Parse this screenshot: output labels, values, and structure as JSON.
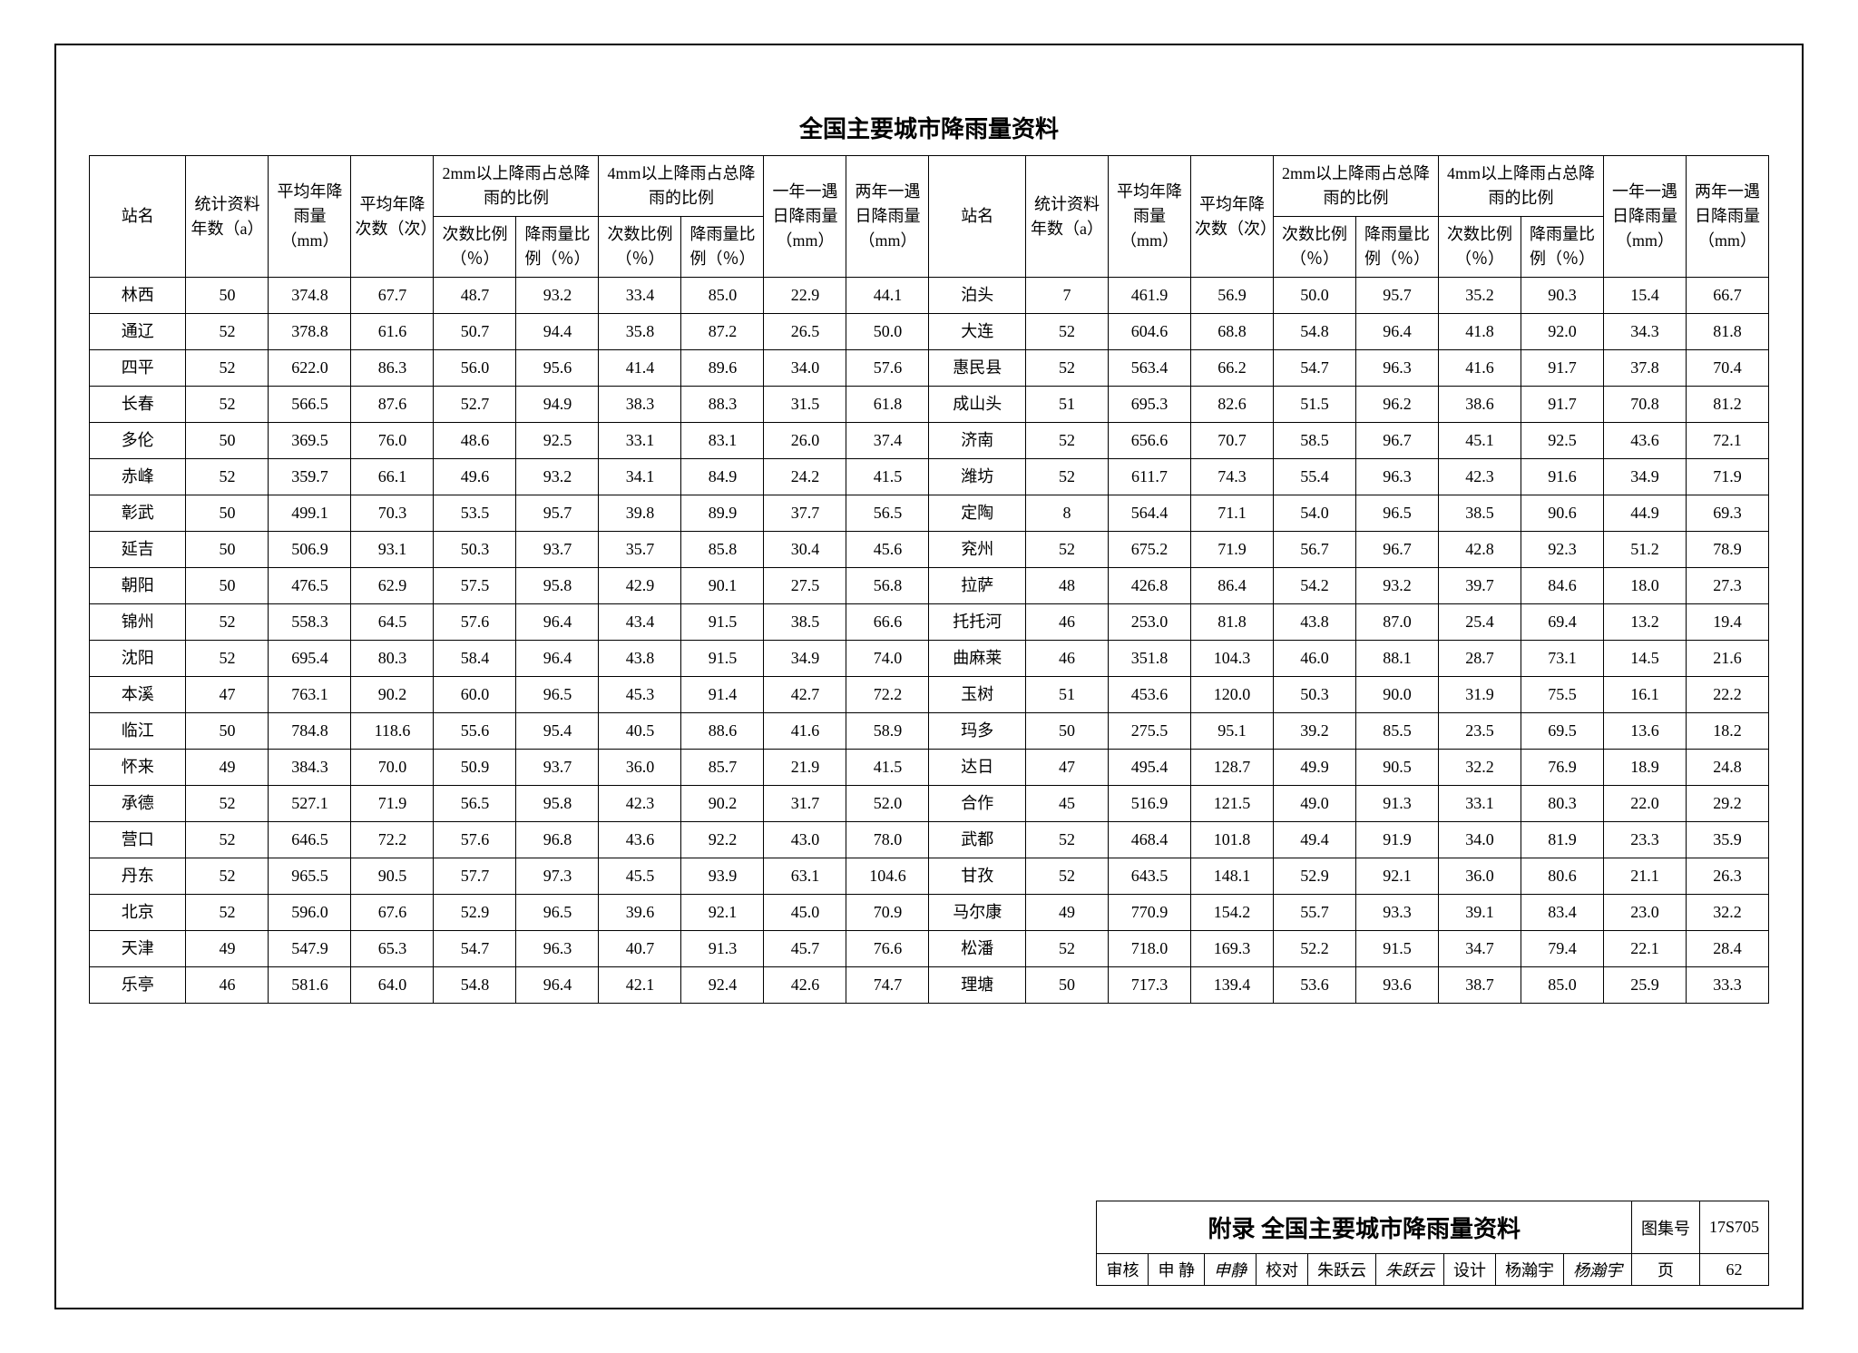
{
  "title": "全国主要城市降雨量资料",
  "columns": {
    "station": "站名",
    "years": "统计资料年数（a）",
    "avg_rain": "平均年降雨量（mm）",
    "avg_times": "平均年降次数（次）",
    "group2mm": "2mm以上降雨占总降雨的比例",
    "group4mm": "4mm以上降雨占总降雨的比例",
    "sub_times_pct": "次数比例（％）",
    "sub_rain_pct": "降雨量比例（％）",
    "one_year": "一年一遇日降雨量（mm）",
    "two_year": "两年一遇日降雨量（mm）"
  },
  "rows_left": [
    [
      "林西",
      "50",
      "374.8",
      "67.7",
      "48.7",
      "93.2",
      "33.4",
      "85.0",
      "22.9",
      "44.1"
    ],
    [
      "通辽",
      "52",
      "378.8",
      "61.6",
      "50.7",
      "94.4",
      "35.8",
      "87.2",
      "26.5",
      "50.0"
    ],
    [
      "四平",
      "52",
      "622.0",
      "86.3",
      "56.0",
      "95.6",
      "41.4",
      "89.6",
      "34.0",
      "57.6"
    ],
    [
      "长春",
      "52",
      "566.5",
      "87.6",
      "52.7",
      "94.9",
      "38.3",
      "88.3",
      "31.5",
      "61.8"
    ],
    [
      "多伦",
      "50",
      "369.5",
      "76.0",
      "48.6",
      "92.5",
      "33.1",
      "83.1",
      "26.0",
      "37.4"
    ],
    [
      "赤峰",
      "52",
      "359.7",
      "66.1",
      "49.6",
      "93.2",
      "34.1",
      "84.9",
      "24.2",
      "41.5"
    ],
    [
      "彰武",
      "50",
      "499.1",
      "70.3",
      "53.5",
      "95.7",
      "39.8",
      "89.9",
      "37.7",
      "56.5"
    ],
    [
      "延吉",
      "50",
      "506.9",
      "93.1",
      "50.3",
      "93.7",
      "35.7",
      "85.8",
      "30.4",
      "45.6"
    ],
    [
      "朝阳",
      "50",
      "476.5",
      "62.9",
      "57.5",
      "95.8",
      "42.9",
      "90.1",
      "27.5",
      "56.8"
    ],
    [
      "锦州",
      "52",
      "558.3",
      "64.5",
      "57.6",
      "96.4",
      "43.4",
      "91.5",
      "38.5",
      "66.6"
    ],
    [
      "沈阳",
      "52",
      "695.4",
      "80.3",
      "58.4",
      "96.4",
      "43.8",
      "91.5",
      "34.9",
      "74.0"
    ],
    [
      "本溪",
      "47",
      "763.1",
      "90.2",
      "60.0",
      "96.5",
      "45.3",
      "91.4",
      "42.7",
      "72.2"
    ],
    [
      "临江",
      "50",
      "784.8",
      "118.6",
      "55.6",
      "95.4",
      "40.5",
      "88.6",
      "41.6",
      "58.9"
    ],
    [
      "怀来",
      "49",
      "384.3",
      "70.0",
      "50.9",
      "93.7",
      "36.0",
      "85.7",
      "21.9",
      "41.5"
    ],
    [
      "承德",
      "52",
      "527.1",
      "71.9",
      "56.5",
      "95.8",
      "42.3",
      "90.2",
      "31.7",
      "52.0"
    ],
    [
      "营口",
      "52",
      "646.5",
      "72.2",
      "57.6",
      "96.8",
      "43.6",
      "92.2",
      "43.0",
      "78.0"
    ],
    [
      "丹东",
      "52",
      "965.5",
      "90.5",
      "57.7",
      "97.3",
      "45.5",
      "93.9",
      "63.1",
      "104.6"
    ],
    [
      "北京",
      "52",
      "596.0",
      "67.6",
      "52.9",
      "96.5",
      "39.6",
      "92.1",
      "45.0",
      "70.9"
    ],
    [
      "天津",
      "49",
      "547.9",
      "65.3",
      "54.7",
      "96.3",
      "40.7",
      "91.3",
      "45.7",
      "76.6"
    ],
    [
      "乐亭",
      "46",
      "581.6",
      "64.0",
      "54.8",
      "96.4",
      "42.1",
      "92.4",
      "42.6",
      "74.7"
    ]
  ],
  "rows_right": [
    [
      "泊头",
      "7",
      "461.9",
      "56.9",
      "50.0",
      "95.7",
      "35.2",
      "90.3",
      "15.4",
      "66.7"
    ],
    [
      "大连",
      "52",
      "604.6",
      "68.8",
      "54.8",
      "96.4",
      "41.8",
      "92.0",
      "34.3",
      "81.8"
    ],
    [
      "惠民县",
      "52",
      "563.4",
      "66.2",
      "54.7",
      "96.3",
      "41.6",
      "91.7",
      "37.8",
      "70.4"
    ],
    [
      "成山头",
      "51",
      "695.3",
      "82.6",
      "51.5",
      "96.2",
      "38.6",
      "91.7",
      "70.8",
      "81.2"
    ],
    [
      "济南",
      "52",
      "656.6",
      "70.7",
      "58.5",
      "96.7",
      "45.1",
      "92.5",
      "43.6",
      "72.1"
    ],
    [
      "潍坊",
      "52",
      "611.7",
      "74.3",
      "55.4",
      "96.3",
      "42.3",
      "91.6",
      "34.9",
      "71.9"
    ],
    [
      "定陶",
      "8",
      "564.4",
      "71.1",
      "54.0",
      "96.5",
      "38.5",
      "90.6",
      "44.9",
      "69.3"
    ],
    [
      "兖州",
      "52",
      "675.2",
      "71.9",
      "56.7",
      "96.7",
      "42.8",
      "92.3",
      "51.2",
      "78.9"
    ],
    [
      "拉萨",
      "48",
      "426.8",
      "86.4",
      "54.2",
      "93.2",
      "39.7",
      "84.6",
      "18.0",
      "27.3"
    ],
    [
      "托托河",
      "46",
      "253.0",
      "81.8",
      "43.8",
      "87.0",
      "25.4",
      "69.4",
      "13.2",
      "19.4"
    ],
    [
      "曲麻莱",
      "46",
      "351.8",
      "104.3",
      "46.0",
      "88.1",
      "28.7",
      "73.1",
      "14.5",
      "21.6"
    ],
    [
      "玉树",
      "51",
      "453.6",
      "120.0",
      "50.3",
      "90.0",
      "31.9",
      "75.5",
      "16.1",
      "22.2"
    ],
    [
      "玛多",
      "50",
      "275.5",
      "95.1",
      "39.2",
      "85.5",
      "23.5",
      "69.5",
      "13.6",
      "18.2"
    ],
    [
      "达日",
      "47",
      "495.4",
      "128.7",
      "49.9",
      "90.5",
      "32.2",
      "76.9",
      "18.9",
      "24.8"
    ],
    [
      "合作",
      "45",
      "516.9",
      "121.5",
      "49.0",
      "91.3",
      "33.1",
      "80.3",
      "22.0",
      "29.2"
    ],
    [
      "武都",
      "52",
      "468.4",
      "101.8",
      "49.4",
      "91.9",
      "34.0",
      "81.9",
      "23.3",
      "35.9"
    ],
    [
      "甘孜",
      "52",
      "643.5",
      "148.1",
      "52.9",
      "92.1",
      "36.0",
      "80.6",
      "21.1",
      "26.3"
    ],
    [
      "马尔康",
      "49",
      "770.9",
      "154.2",
      "55.7",
      "93.3",
      "39.1",
      "83.4",
      "23.0",
      "32.2"
    ],
    [
      "松潘",
      "52",
      "718.0",
      "169.3",
      "52.2",
      "91.5",
      "34.7",
      "79.4",
      "22.1",
      "28.4"
    ],
    [
      "理塘",
      "50",
      "717.3",
      "139.4",
      "53.6",
      "93.6",
      "38.7",
      "85.0",
      "25.9",
      "33.3"
    ]
  ],
  "titleblock": {
    "appendix": "附录  全国主要城市降雨量资料",
    "atlas_label": "图集号",
    "atlas_value": "17S705",
    "review_label": "审核",
    "review_name": "申 静",
    "review_sig": "申静",
    "check_label": "校对",
    "check_name": "朱跃云",
    "check_sig": "朱跃云",
    "design_label": "设计",
    "design_name": "杨瀚宇",
    "design_sig": "杨瀚宇",
    "page_label": "页",
    "page_value": "62"
  },
  "style": {
    "border_color": "#000000",
    "bg_color": "#ffffff",
    "title_fontsize": 26,
    "cell_fontsize": 18
  }
}
